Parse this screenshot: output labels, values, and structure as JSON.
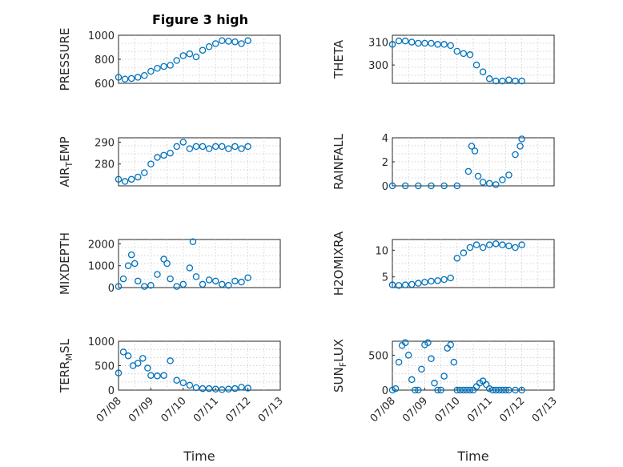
{
  "figure": {
    "title": "Figure 3 high"
  },
  "colors": {
    "marker": "#0072bd",
    "axis": "#262626",
    "grid": "#c8c8c8"
  },
  "chart_data": [
    {
      "type": "scatter",
      "ylabel": "PRESSURE",
      "title": "Figure 3 high",
      "ylim": [
        600,
        1000
      ],
      "yticks": [
        "600",
        "800",
        "1000"
      ],
      "xlim": [
        0,
        5
      ],
      "xticks": [],
      "x": [
        0.0,
        0.2,
        0.4,
        0.6,
        0.8,
        1.0,
        1.2,
        1.4,
        1.6,
        1.8,
        2.0,
        2.2,
        2.4,
        2.6,
        2.8,
        3.0,
        3.2,
        3.4,
        3.6,
        3.8,
        4.0
      ],
      "y": [
        650,
        635,
        640,
        650,
        665,
        700,
        725,
        740,
        750,
        790,
        830,
        845,
        820,
        875,
        905,
        930,
        955,
        950,
        945,
        930,
        955
      ]
    },
    {
      "type": "scatter",
      "ylabel": "THETA",
      "ylim": [
        292,
        313
      ],
      "yticks": [
        "300",
        "310"
      ],
      "xlim": [
        0,
        5
      ],
      "xticks": [],
      "x": [
        0.0,
        0.2,
        0.4,
        0.6,
        0.8,
        1.0,
        1.2,
        1.4,
        1.6,
        1.8,
        2.0,
        2.2,
        2.4,
        2.6,
        2.8,
        3.0,
        3.2,
        3.4,
        3.6,
        3.8,
        4.0
      ],
      "y": [
        309,
        310.5,
        310.5,
        310,
        309.5,
        309.5,
        309.5,
        309,
        309,
        308.5,
        306,
        305,
        304.5,
        300,
        297,
        294,
        293,
        293,
        293.5,
        293,
        293
      ]
    },
    {
      "type": "scatter",
      "ylabel": "AIR_TEMP",
      "ylim": [
        270,
        292
      ],
      "yticks": [
        "280",
        "290"
      ],
      "xlim": [
        0,
        5
      ],
      "xticks": [],
      "x": [
        0.0,
        0.2,
        0.4,
        0.6,
        0.8,
        1.0,
        1.2,
        1.4,
        1.6,
        1.8,
        2.0,
        2.2,
        2.4,
        2.6,
        2.8,
        3.0,
        3.2,
        3.4,
        3.6,
        3.8,
        4.0
      ],
      "y": [
        273,
        272,
        273,
        274,
        276,
        280,
        283,
        284,
        285,
        288,
        290,
        287,
        288,
        288,
        287,
        288,
        288,
        287,
        288,
        287,
        288
      ]
    },
    {
      "type": "scatter",
      "ylabel": "RAINFALL",
      "ylim": [
        0,
        4
      ],
      "yticks": [
        "0",
        "2",
        "4"
      ],
      "xlim": [
        0,
        5
      ],
      "xticks": [],
      "x": [
        0.0,
        0.4,
        0.8,
        1.2,
        1.6,
        2.0,
        2.35,
        2.45,
        2.55,
        2.65,
        2.8,
        3.0,
        3.2,
        3.4,
        3.6,
        3.8,
        3.95,
        4.0
      ],
      "y": [
        0,
        0,
        0,
        0,
        0,
        0,
        1.2,
        3.3,
        2.9,
        0.8,
        0.3,
        0.2,
        0.1,
        0.5,
        0.9,
        2.6,
        3.3,
        3.9
      ]
    },
    {
      "type": "scatter",
      "ylabel": "MIXDEPTH",
      "ylim": [
        0,
        2200
      ],
      "yticks": [
        "0",
        "1000",
        "2000"
      ],
      "xlim": [
        0,
        5
      ],
      "xticks": [],
      "x": [
        0.0,
        0.15,
        0.3,
        0.4,
        0.5,
        0.6,
        0.8,
        1.0,
        1.2,
        1.4,
        1.5,
        1.6,
        1.8,
        2.0,
        2.2,
        2.3,
        2.4,
        2.6,
        2.8,
        3.0,
        3.2,
        3.4,
        3.6,
        3.8,
        4.0
      ],
      "y": [
        50,
        400,
        1000,
        1500,
        1100,
        300,
        50,
        100,
        600,
        1300,
        1100,
        400,
        50,
        150,
        900,
        2100,
        500,
        150,
        350,
        300,
        150,
        100,
        300,
        250,
        450
      ]
    },
    {
      "type": "scatter",
      "ylabel": "H2OMIXRA",
      "ylim": [
        3,
        12
      ],
      "yticks": [
        "5",
        "10"
      ],
      "xlim": [
        0,
        5
      ],
      "xticks": [],
      "x": [
        0.0,
        0.2,
        0.4,
        0.6,
        0.8,
        1.0,
        1.2,
        1.4,
        1.6,
        1.8,
        2.0,
        2.2,
        2.4,
        2.6,
        2.8,
        3.0,
        3.2,
        3.4,
        3.6,
        3.8,
        4.0
      ],
      "y": [
        3.5,
        3.4,
        3.5,
        3.6,
        3.8,
        4.0,
        4.2,
        4.3,
        4.5,
        4.8,
        8.5,
        9.5,
        10.5,
        11,
        10.5,
        11,
        11.2,
        11,
        10.8,
        10.5,
        11
      ]
    },
    {
      "type": "scatter",
      "ylabel": "TERR_MSL",
      "ylim": [
        0,
        1000
      ],
      "yticks": [
        "0",
        "500",
        "1000"
      ],
      "xlim": [
        0,
        5
      ],
      "xticks": [
        "07/08",
        "07/09",
        "07/10",
        "07/11",
        "07/12",
        "07/13"
      ],
      "xlabel": "Time",
      "x": [
        0.0,
        0.15,
        0.3,
        0.45,
        0.6,
        0.75,
        0.9,
        1.0,
        1.2,
        1.4,
        1.6,
        1.8,
        2.0,
        2.2,
        2.4,
        2.6,
        2.8,
        3.0,
        3.2,
        3.4,
        3.6,
        3.8,
        4.0
      ],
      "y": [
        350,
        780,
        700,
        500,
        550,
        650,
        450,
        300,
        290,
        300,
        600,
        200,
        150,
        100,
        50,
        30,
        30,
        20,
        10,
        20,
        30,
        60,
        40
      ]
    },
    {
      "type": "scatter",
      "ylabel": "SUN_FLUX",
      "ylim": [
        0,
        700
      ],
      "yticks": [
        "0",
        "500"
      ],
      "xlim": [
        0,
        5
      ],
      "xticks": [
        "07/08",
        "07/09",
        "07/10",
        "07/11",
        "07/12",
        "07/13"
      ],
      "xlabel": "Time",
      "x": [
        0.0,
        0.1,
        0.2,
        0.3,
        0.4,
        0.5,
        0.6,
        0.7,
        0.8,
        0.9,
        1.0,
        1.1,
        1.2,
        1.3,
        1.4,
        1.5,
        1.6,
        1.7,
        1.8,
        1.9,
        2.0,
        2.1,
        2.2,
        2.3,
        2.4,
        2.5,
        2.6,
        2.7,
        2.8,
        2.9,
        3.0,
        3.1,
        3.2,
        3.3,
        3.4,
        3.5,
        3.6,
        3.8,
        4.0
      ],
      "y": [
        0,
        20,
        400,
        640,
        680,
        500,
        150,
        0,
        0,
        300,
        650,
        680,
        450,
        100,
        0,
        0,
        200,
        600,
        650,
        400,
        0,
        0,
        0,
        0,
        0,
        0,
        50,
        100,
        130,
        80,
        20,
        0,
        0,
        0,
        0,
        0,
        0,
        0,
        0
      ]
    }
  ]
}
